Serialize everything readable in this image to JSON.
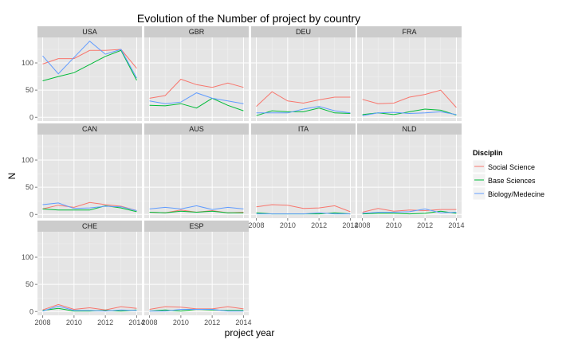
{
  "chart_data": {
    "type": "line",
    "title": "Evolution of the Number of project by country",
    "xlabel": "project year",
    "ylabel": "N",
    "xlim": [
      2008,
      2014
    ],
    "ylim": [
      0,
      140
    ],
    "x_ticks": [
      2008,
      2010,
      2012,
      2014
    ],
    "y_ticks": [
      0,
      50,
      100
    ],
    "grid": true,
    "x": [
      2008,
      2009,
      2010,
      2011,
      2012,
      2013,
      2014
    ],
    "legend": {
      "title": "Disciplin",
      "position": "right",
      "entries": [
        {
          "name": "Social Science",
          "color": "#F8766D"
        },
        {
          "name": "Base Sciences",
          "color": "#00BA38"
        },
        {
          "name": "Biology/Medecine",
          "color": "#619CFF"
        }
      ]
    },
    "panels": [
      {
        "country": "USA",
        "series": [
          {
            "name": "Social Science",
            "values": [
              98,
              108,
              108,
              123,
              123,
              125,
              90
            ]
          },
          {
            "name": "Base Sciences",
            "values": [
              67,
              75,
              82,
              97,
              112,
              123,
              68
            ]
          },
          {
            "name": "Biology/Medecine",
            "values": [
              113,
              80,
              110,
              140,
              116,
              125,
              72
            ]
          }
        ]
      },
      {
        "country": "GBR",
        "series": [
          {
            "name": "Social Science",
            "values": [
              35,
              40,
              70,
              60,
              55,
              63,
              55
            ]
          },
          {
            "name": "Base Sciences",
            "values": [
              22,
              21,
              25,
              17,
              35,
              22,
              12
            ]
          },
          {
            "name": "Biology/Medecine",
            "values": [
              30,
              25,
              28,
              45,
              35,
              30,
              25
            ]
          }
        ]
      },
      {
        "country": "DEU",
        "series": [
          {
            "name": "Social Science",
            "values": [
              20,
              47,
              30,
              26,
              32,
              37,
              37
            ]
          },
          {
            "name": "Base Sciences",
            "values": [
              3,
              12,
              10,
              10,
              17,
              8,
              7
            ]
          },
          {
            "name": "Biology/Medecine",
            "values": [
              8,
              8,
              8,
              15,
              20,
              12,
              8
            ]
          }
        ]
      },
      {
        "country": "FRA",
        "series": [
          {
            "name": "Social Science",
            "values": [
              33,
              25,
              26,
              37,
              42,
              50,
              18
            ]
          },
          {
            "name": "Base Sciences",
            "values": [
              5,
              8,
              5,
              10,
              15,
              13,
              4
            ]
          },
          {
            "name": "Biology/Medecine",
            "values": [
              3,
              8,
              9,
              7,
              8,
              10,
              5
            ]
          }
        ]
      },
      {
        "country": "CAN",
        "series": [
          {
            "name": "Social Science",
            "values": [
              10,
              17,
              13,
              22,
              18,
              15,
              7
            ]
          },
          {
            "name": "Base Sciences",
            "values": [
              10,
              8,
              8,
              8,
              16,
              12,
              5
            ]
          },
          {
            "name": "Biology/Medecine",
            "values": [
              18,
              21,
              11,
              12,
              15,
              14,
              7
            ]
          }
        ]
      },
      {
        "country": "AUS",
        "series": [
          {
            "name": "Social Science",
            "values": [
              4,
              3,
              8,
              4,
              7,
              3,
              4
            ]
          },
          {
            "name": "Base Sciences",
            "values": [
              4,
              3,
              6,
              4,
              6,
              3,
              3
            ]
          },
          {
            "name": "Biology/Medecine",
            "values": [
              10,
              13,
              10,
              16,
              9,
              13,
              10
            ]
          }
        ]
      },
      {
        "country": "ITA",
        "series": [
          {
            "name": "Social Science",
            "values": [
              14,
              18,
              17,
              11,
              12,
              16,
              5
            ]
          },
          {
            "name": "Base Sciences",
            "values": [
              3,
              1,
              1,
              1,
              1,
              3,
              1
            ]
          },
          {
            "name": "Biology/Medecine",
            "values": [
              1,
              1,
              1,
              1,
              3,
              1,
              1
            ]
          }
        ]
      },
      {
        "country": "NLD",
        "series": [
          {
            "name": "Social Science",
            "values": [
              4,
              11,
              6,
              8,
              7,
              9,
              9
            ]
          },
          {
            "name": "Base Sciences",
            "values": [
              1,
              2,
              2,
              1,
              2,
              6,
              2
            ]
          },
          {
            "name": "Biology/Medecine",
            "values": [
              2,
              4,
              4,
              5,
              10,
              3,
              4
            ]
          }
        ]
      },
      {
        "country": "CHE",
        "series": [
          {
            "name": "Social Science",
            "values": [
              3,
              13,
              4,
              7,
              3,
              9,
              6
            ]
          },
          {
            "name": "Base Sciences",
            "values": [
              2,
              6,
              1,
              1,
              2,
              1,
              3
            ]
          },
          {
            "name": "Biology/Medecine",
            "values": [
              1,
              10,
              2,
              2,
              1,
              3,
              2
            ]
          }
        ]
      },
      {
        "country": "ESP",
        "series": [
          {
            "name": "Social Science",
            "values": [
              4,
              9,
              8,
              5,
              5,
              9,
              5
            ]
          },
          {
            "name": "Base Sciences",
            "values": [
              1,
              3,
              1,
              4,
              3,
              2,
              2
            ]
          },
          {
            "name": "Biology/Medecine",
            "values": [
              1,
              1,
              4,
              4,
              4,
              1,
              1
            ]
          }
        ]
      }
    ]
  }
}
